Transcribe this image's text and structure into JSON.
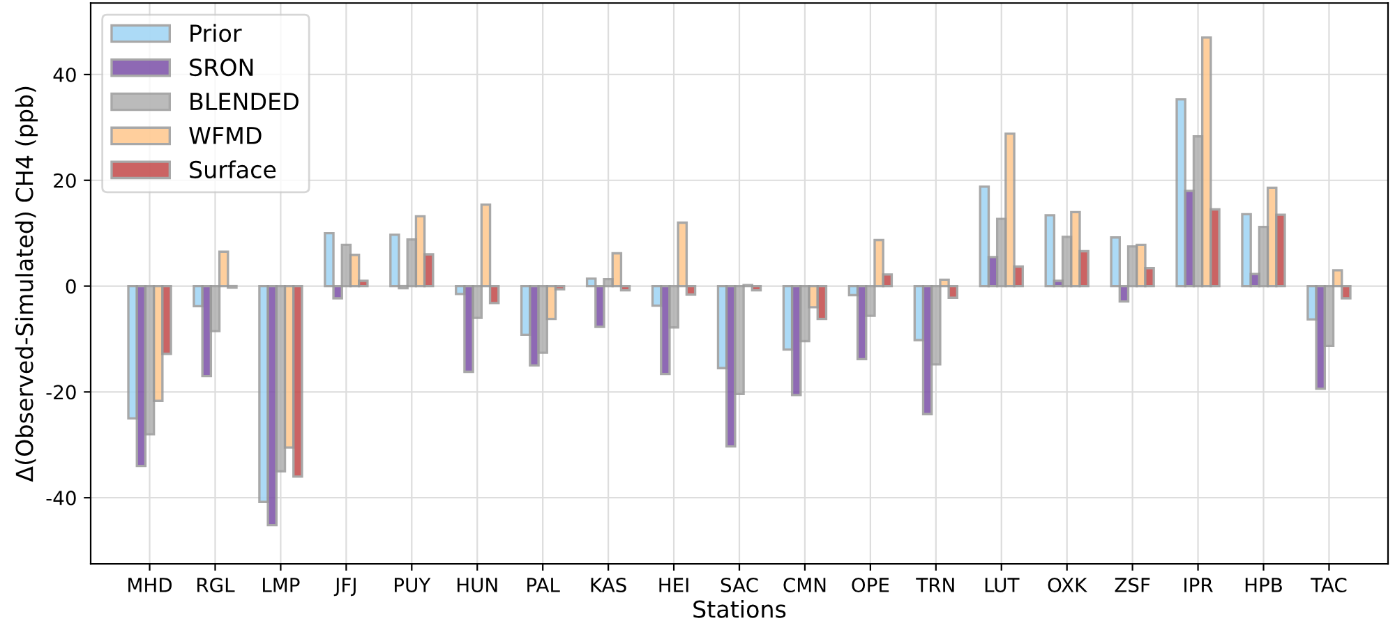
{
  "chart_data": {
    "type": "bar",
    "xlabel": "Stations",
    "ylabel": "Δ(Observed-Simulated) CH4 (ppb)",
    "categories": [
      "MHD",
      "RGL",
      "LMP",
      "JFJ",
      "PUY",
      "HUN",
      "PAL",
      "KAS",
      "HEI",
      "SAC",
      "CMN",
      "OPE",
      "TRN",
      "LUT",
      "OXK",
      "ZSF",
      "IPR",
      "HPB",
      "TAC"
    ],
    "series": [
      {
        "name": "Prior",
        "color": "#9ed4f5",
        "values": [
          -25,
          -3.8,
          -40.8,
          10,
          9.7,
          -1.5,
          -9.2,
          1.4,
          -3.7,
          -15.5,
          -12,
          -1.7,
          -10.2,
          18.8,
          13.4,
          9.2,
          35.3,
          13.6,
          -6.3
        ]
      },
      {
        "name": "SRON",
        "color": "#7b50a8",
        "values": [
          -34,
          -17,
          -45.2,
          -2.3,
          -0.4,
          -16.2,
          -15,
          -7.7,
          -16.6,
          -30.3,
          -20.6,
          -13.8,
          -24.2,
          5.5,
          1.0,
          -2.9,
          18,
          2.3,
          -19.4
        ]
      },
      {
        "name": "BLENDED",
        "color": "#b0b0b0",
        "values": [
          -28,
          -8.5,
          -35,
          7.8,
          8.8,
          -6,
          -12.6,
          1.3,
          -7.8,
          -20.4,
          -10.4,
          -5.6,
          -14.8,
          12.7,
          9.3,
          7.5,
          28.3,
          11.2,
          -11.3
        ]
      },
      {
        "name": "WFMD",
        "color": "#ffc78c",
        "values": [
          -21.7,
          6.5,
          -30.5,
          5.9,
          13.2,
          15.4,
          -6.2,
          6.2,
          12,
          0.2,
          -4,
          8.7,
          1.2,
          28.8,
          14.0,
          7.8,
          47,
          18.6,
          3
        ]
      },
      {
        "name": "Surface",
        "color": "#c24848",
        "values": [
          -12.8,
          -0.3,
          -36,
          1,
          6,
          -3.2,
          -0.6,
          -0.8,
          -1.6,
          -0.8,
          -6.2,
          2.2,
          -2.2,
          3.7,
          6.6,
          3.4,
          14.5,
          13.5,
          -2.3
        ]
      }
    ],
    "ylim": [
      -52.5,
      53.5
    ],
    "yticks": [
      -40,
      -20,
      0,
      20,
      40
    ],
    "grid": true,
    "legend": "top left"
  }
}
